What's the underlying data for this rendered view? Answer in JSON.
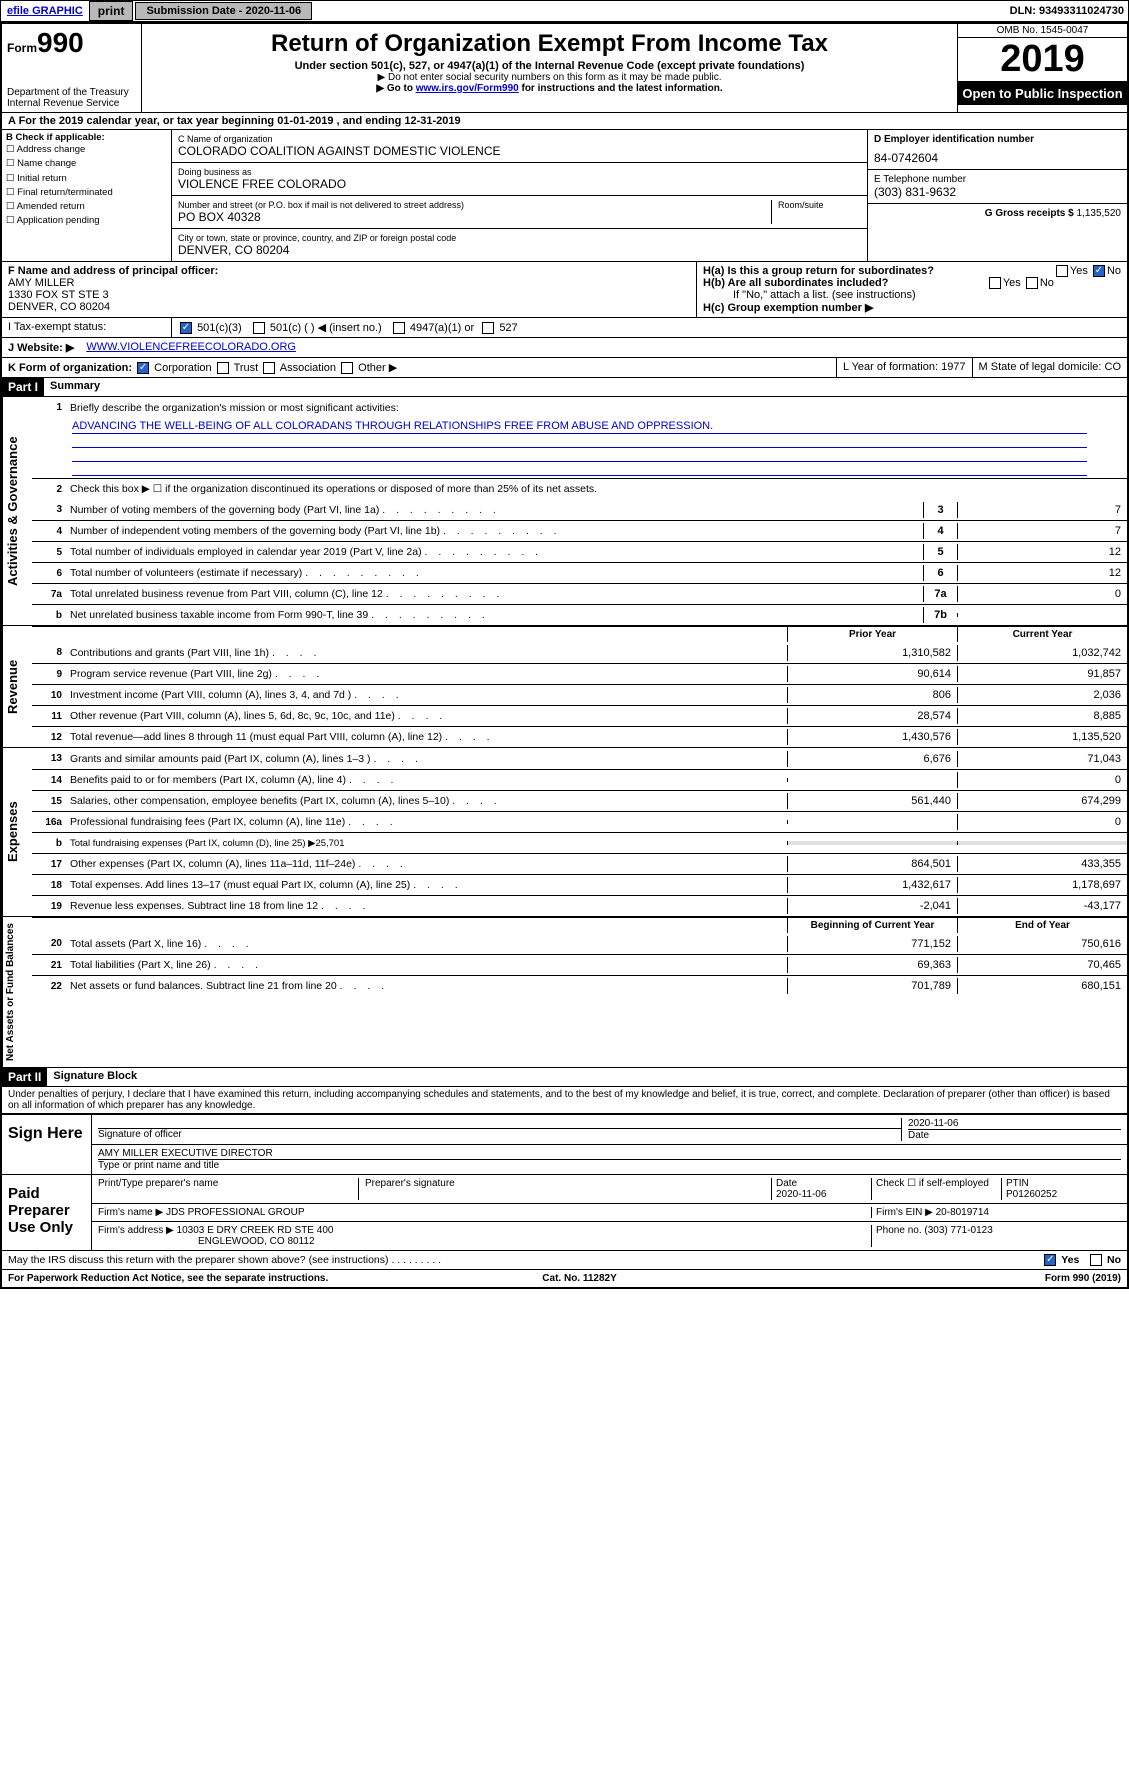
{
  "topbar": {
    "efile": "efile GRAPHIC",
    "print": "print",
    "submission": "Submission Date - 2020-11-06",
    "dln": "DLN: 93493311024730"
  },
  "header": {
    "form_prefix": "Form",
    "form_number": "990",
    "dept": "Department of the Treasury",
    "irs": "Internal Revenue Service",
    "title": "Return of Organization Exempt From Income Tax",
    "sub1": "Under section 501(c), 527, or 4947(a)(1) of the Internal Revenue Code (except private foundations)",
    "sub2": "▶ Do not enter social security numbers on this form as it may be made public.",
    "sub3_pre": "▶ Go to ",
    "sub3_link": "www.irs.gov/Form990",
    "sub3_post": " for instructions and the latest information.",
    "omb": "OMB No. 1545-0047",
    "year": "2019",
    "open": "Open to Public Inspection"
  },
  "row_a": "A For the 2019 calendar year, or tax year beginning 01-01-2019   , and ending 12-31-2019",
  "col_b": {
    "title": "B Check if applicable:",
    "opts": [
      "Address change",
      "Name change",
      "Initial return",
      "Final return/terminated",
      "Amended return",
      "Application pending"
    ]
  },
  "col_c": {
    "name_label": "C Name of organization",
    "name": "COLORADO COALITION AGAINST DOMESTIC VIOLENCE",
    "dba_label": "Doing business as",
    "dba": "VIOLENCE FREE COLORADO",
    "addr_label": "Number and street (or P.O. box if mail is not delivered to street address)",
    "room_label": "Room/suite",
    "addr": "PO BOX 40328",
    "city_label": "City or town, state or province, country, and ZIP or foreign postal code",
    "city": "DENVER, CO  80204"
  },
  "col_d": {
    "d_label": "D Employer identification number",
    "d_val": "84-0742604",
    "e_label": "E Telephone number",
    "e_val": "(303) 831-9632",
    "g_label": "G Gross receipts $",
    "g_val": "1,135,520"
  },
  "row_f": {
    "f_label": "F Name and address of principal officer:",
    "f_name": "AMY MILLER",
    "f_addr1": "1330 FOX ST STE 3",
    "f_addr2": "DENVER, CO  80204",
    "ha": "H(a)  Is this a group return for subordinates?",
    "hb": "H(b)  Are all subordinates included?",
    "hb_note": "If \"No,\" attach a list. (see instructions)",
    "hc": "H(c)  Group exemption number ▶"
  },
  "row_i": {
    "label": "I   Tax-exempt status:",
    "o1": "501(c)(3)",
    "o2": "501(c) (   ) ◀ (insert no.)",
    "o3": "4947(a)(1) or",
    "o4": "527"
  },
  "row_j": {
    "label": "J   Website: ▶",
    "val": "WWW.VIOLENCEFREECOLORADO.ORG"
  },
  "row_k": {
    "label": "K Form of organization:",
    "corp": "Corporation",
    "trust": "Trust",
    "assoc": "Association",
    "other": "Other ▶",
    "l": "L Year of formation: 1977",
    "m": "M State of legal domicile: CO"
  },
  "part1": {
    "hdr": "Part I",
    "title": "Summary",
    "l1": "Briefly describe the organization's mission or most significant activities:",
    "mission": "ADVANCING THE WELL-BEING OF ALL COLORADANS THROUGH RELATIONSHIPS FREE FROM ABUSE AND OPPRESSION.",
    "l2": "Check this box ▶ ☐  if the organization discontinued its operations or disposed of more than 25% of its net assets.",
    "rows_gov": [
      {
        "n": "3",
        "d": "Number of voting members of the governing body (Part VI, line 1a)",
        "b": "3",
        "v": "7"
      },
      {
        "n": "4",
        "d": "Number of independent voting members of the governing body (Part VI, line 1b)",
        "b": "4",
        "v": "7"
      },
      {
        "n": "5",
        "d": "Total number of individuals employed in calendar year 2019 (Part V, line 2a)",
        "b": "5",
        "v": "12"
      },
      {
        "n": "6",
        "d": "Total number of volunteers (estimate if necessary)",
        "b": "6",
        "v": "12"
      },
      {
        "n": "7a",
        "d": "Total unrelated business revenue from Part VIII, column (C), line 12",
        "b": "7a",
        "v": "0"
      },
      {
        "n": "b",
        "d": "Net unrelated business taxable income from Form 990-T, line 39",
        "b": "7b",
        "v": ""
      }
    ],
    "col_py": "Prior Year",
    "col_cy": "Current Year",
    "rows_rev": [
      {
        "n": "8",
        "d": "Contributions and grants (Part VIII, line 1h)",
        "py": "1,310,582",
        "cy": "1,032,742"
      },
      {
        "n": "9",
        "d": "Program service revenue (Part VIII, line 2g)",
        "py": "90,614",
        "cy": "91,857"
      },
      {
        "n": "10",
        "d": "Investment income (Part VIII, column (A), lines 3, 4, and 7d )",
        "py": "806",
        "cy": "2,036"
      },
      {
        "n": "11",
        "d": "Other revenue (Part VIII, column (A), lines 5, 6d, 8c, 9c, 10c, and 11e)",
        "py": "28,574",
        "cy": "8,885"
      },
      {
        "n": "12",
        "d": "Total revenue—add lines 8 through 11 (must equal Part VIII, column (A), line 12)",
        "py": "1,430,576",
        "cy": "1,135,520"
      }
    ],
    "rows_exp": [
      {
        "n": "13",
        "d": "Grants and similar amounts paid (Part IX, column (A), lines 1–3 )",
        "py": "6,676",
        "cy": "71,043"
      },
      {
        "n": "14",
        "d": "Benefits paid to or for members (Part IX, column (A), line 4)",
        "py": "",
        "cy": "0"
      },
      {
        "n": "15",
        "d": "Salaries, other compensation, employee benefits (Part IX, column (A), lines 5–10)",
        "py": "561,440",
        "cy": "674,299"
      },
      {
        "n": "16a",
        "d": "Professional fundraising fees (Part IX, column (A), line 11e)",
        "py": "",
        "cy": "0"
      },
      {
        "n": "b",
        "d": "Total fundraising expenses (Part IX, column (D), line 25) ▶25,701",
        "py": "—",
        "cy": "—"
      },
      {
        "n": "17",
        "d": "Other expenses (Part IX, column (A), lines 11a–11d, 11f–24e)",
        "py": "864,501",
        "cy": "433,355"
      },
      {
        "n": "18",
        "d": "Total expenses. Add lines 13–17 (must equal Part IX, column (A), line 25)",
        "py": "1,432,617",
        "cy": "1,178,697"
      },
      {
        "n": "19",
        "d": "Revenue less expenses. Subtract line 18 from line 12",
        "py": "-2,041",
        "cy": "-43,177"
      }
    ],
    "col_bcy": "Beginning of Current Year",
    "col_eoy": "End of Year",
    "rows_net": [
      {
        "n": "20",
        "d": "Total assets (Part X, line 16)",
        "py": "771,152",
        "cy": "750,616"
      },
      {
        "n": "21",
        "d": "Total liabilities (Part X, line 26)",
        "py": "69,363",
        "cy": "70,465"
      },
      {
        "n": "22",
        "d": "Net assets or fund balances. Subtract line 21 from line 20",
        "py": "701,789",
        "cy": "680,151"
      }
    ]
  },
  "part2": {
    "hdr": "Part II",
    "title": "Signature Block",
    "decl": "Under penalties of perjury, I declare that I have examined this return, including accompanying schedules and statements, and to the best of my knowledge and belief, it is true, correct, and complete. Declaration of preparer (other than officer) is based on all information of which preparer has any knowledge.",
    "sign_here": "Sign Here",
    "sig_officer": "Signature of officer",
    "sig_date": "2020-11-06",
    "date_l": "Date",
    "officer": "AMY MILLER  EXECUTIVE DIRECTOR",
    "officer_l": "Type or print name and title",
    "paid": "Paid Preparer Use Only",
    "pname_l": "Print/Type preparer's name",
    "psig_l": "Preparer's signature",
    "pdate": "2020-11-06",
    "chk_self": "Check ☐ if self-employed",
    "ptin_l": "PTIN",
    "ptin": "P01260252",
    "firm_l": "Firm's name   ▶",
    "firm": "JDS PROFESSIONAL GROUP",
    "ein_l": "Firm's EIN ▶",
    "ein": "20-8019714",
    "faddr_l": "Firm's address ▶",
    "faddr1": "10303 E DRY CREEK RD STE 400",
    "faddr2": "ENGLEWOOD, CO  80112",
    "phone_l": "Phone no.",
    "phone": "(303) 771-0123",
    "discuss": "May the IRS discuss this return with the preparer shown above? (see instructions)"
  },
  "footer": {
    "left": "For Paperwork Reduction Act Notice, see the separate instructions.",
    "mid": "Cat. No. 11282Y",
    "right": "Form 990 (2019)"
  },
  "labels": {
    "vgov": "Activities & Governance",
    "vrev": "Revenue",
    "vexp": "Expenses",
    "vnet": "Net Assets or Fund Balances",
    "yes": "Yes",
    "no": "No"
  }
}
